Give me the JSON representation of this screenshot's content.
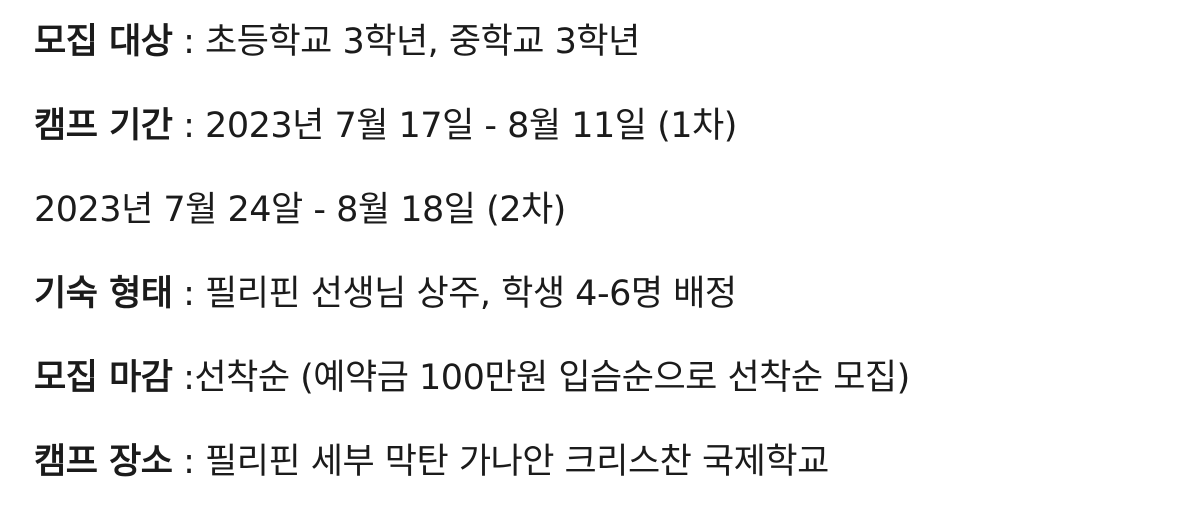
{
  "lines": [
    {
      "label": "모집 대상",
      "separator": " : ",
      "value": "초등학교 3학년, 중학교 3학년"
    },
    {
      "label": "캠프 기간",
      "separator": " : ",
      "value": "2023년 7월 17일 - 8월 11일 (1차)"
    },
    {
      "label": "",
      "separator": "",
      "value": "2023년 7월 24알 - 8월 18일 (2차)"
    },
    {
      "label": "기숙 형태",
      "separator": " : ",
      "value": "필리핀 선생님 상주, 학생 4-6명 배정"
    },
    {
      "label": "모집 마감",
      "separator": " :",
      "value": "선착순 (예약금 100만원 입슴순으로 선착순 모집)"
    },
    {
      "label": "캠프 장소",
      "separator": " : ",
      "value": "필리핀 세부 막탄 가나안 크리스찬 국제학교"
    }
  ]
}
